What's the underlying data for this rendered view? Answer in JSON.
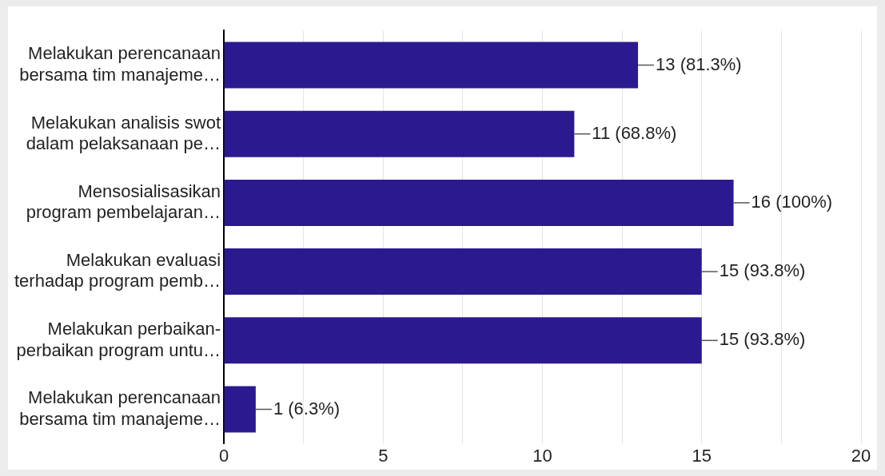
{
  "chart_data": {
    "type": "bar",
    "orientation": "horizontal",
    "categories": [
      "Melakukan perencanaan\nbersama tim manajeme…",
      "Melakukan analisis swot\ndalam pelaksanaan pe…",
      "Mensosialisasikan\nprogram pembelajaran…",
      "Melakukan evaluasi\nterhadap program pemb…",
      "Melakukan perbaikan-\nperbaikan program untu…",
      "Melakukan perencanaan\nbersama tim manajeme…"
    ],
    "values": [
      13,
      11,
      16,
      15,
      15,
      1
    ],
    "value_labels": [
      "13 (81.3%)",
      "11 (68.8%)",
      "16 (100%)",
      "15 (93.8%)",
      "15 (93.8%)",
      "1 (6.3%)"
    ],
    "color": "#2b1a8f",
    "xlim": [
      0,
      20
    ],
    "xticks": [
      0,
      {
        "value": 2.5,
        "label": null
      },
      5,
      {
        "value": 7.5,
        "label": null
      },
      10,
      {
        "value": 12.5,
        "label": null
      },
      15,
      {
        "value": 17.5,
        "label": null
      },
      20
    ],
    "grid": "x",
    "legend": false
  }
}
